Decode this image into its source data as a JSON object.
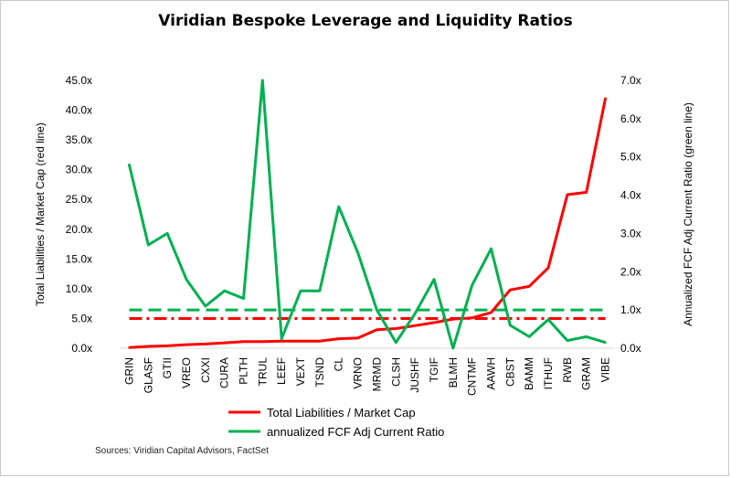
{
  "chart_data": {
    "type": "line",
    "title": "Viridian Bespoke Leverage and Liquidity Ratios",
    "source": "Sources: Viridian Capital Advisors, FactSet",
    "categories": [
      "GRIN",
      "GLASF",
      "GTII",
      "VREO",
      "CXXI",
      "CURA",
      "PLTH",
      "TRUL",
      "LEEF",
      "VEXT",
      "TSND",
      "CL",
      "VRNO",
      "MRMD",
      "CLSH",
      "JUSHF",
      "TGIF",
      "BLMH",
      "CNTMF",
      "AAWH",
      "CBST",
      "BAMM",
      "ITHUF",
      "RWB",
      "GRAM",
      "VIBE"
    ],
    "y_left": {
      "label": "Total Liabilities / Market Cap (red line)",
      "range": [
        0,
        45
      ],
      "ticks": [
        0,
        5,
        10,
        15,
        20,
        25,
        30,
        35,
        40,
        45
      ],
      "tick_labels": [
        "0.0x",
        "5.0x",
        "10.0x",
        "15.0x",
        "20.0x",
        "25.0x",
        "30.0x",
        "35.0x",
        "40.0x",
        "45.0x"
      ]
    },
    "y_right": {
      "label": "Annualized FCF Adj Current Ratio (green line)",
      "range": [
        0,
        7
      ],
      "ticks": [
        0,
        1,
        2,
        3,
        4,
        5,
        6,
        7
      ],
      "tick_labels": [
        "0.0x",
        "1.0x",
        "2.0x",
        "3.0x",
        "4.0x",
        "5.0x",
        "6.0x",
        "7.0x"
      ]
    },
    "series": [
      {
        "name": "Total Liabilities / Market Cap",
        "axis": "left",
        "color": "#ff0000",
        "values": [
          0.1,
          0.3,
          0.4,
          0.6,
          0.7,
          0.9,
          1.1,
          1.1,
          1.2,
          1.2,
          1.2,
          1.6,
          1.7,
          3.1,
          3.3,
          3.8,
          4.3,
          4.9,
          5.1,
          6.0,
          9.8,
          10.4,
          13.5,
          25.8,
          26.2,
          42.0
        ]
      },
      {
        "name": "annualized FCF Adj Current Ratio",
        "axis": "right",
        "color": "#00b050",
        "values": [
          4.8,
          2.7,
          3.0,
          1.8,
          1.1,
          1.5,
          1.3,
          7.0,
          0.25,
          1.5,
          1.5,
          3.7,
          2.5,
          1.0,
          0.15,
          0.9,
          1.8,
          0.0,
          1.65,
          2.6,
          0.6,
          0.3,
          0.75,
          0.2,
          0.3,
          0.15
        ]
      }
    ],
    "reference_lines": [
      {
        "axis": "left",
        "value": 5.0,
        "color": "#ff0000",
        "style": "dash-dot"
      },
      {
        "axis": "right",
        "value": 1.0,
        "color": "#00b050",
        "style": "dash"
      }
    ],
    "legend_position": "bottom",
    "grid": false
  }
}
